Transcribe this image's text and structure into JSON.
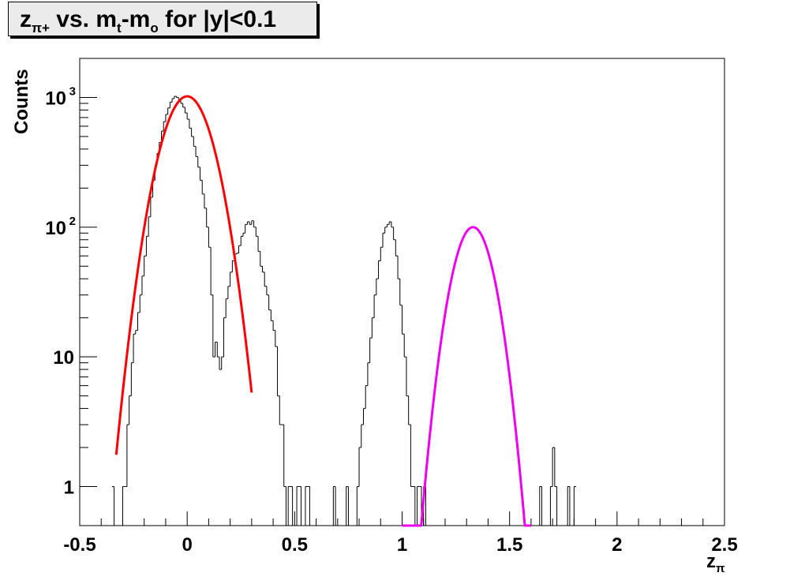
{
  "chart_data": {
    "type": "line",
    "title_parts": {
      "z": "z",
      "z_sub": "π+",
      "mid": " vs. m",
      "t_sub": "t",
      "dash": "-m",
      "o_sub": "o",
      "tail": " for |y|<0.1"
    },
    "xlabel_main": "z",
    "xlabel_sub": "π",
    "ylabel": "Counts",
    "xlim": [
      -0.5,
      2.5
    ],
    "ylim": [
      0.5,
      2000
    ],
    "yscale": "log",
    "x_ticks": [
      "-0.5",
      "0",
      "0.5",
      "1",
      "1.5",
      "2",
      "2.5"
    ],
    "y_ticks": [
      {
        "value": 1,
        "base": "1",
        "exp": ""
      },
      {
        "value": 10,
        "base": "10",
        "exp": ""
      },
      {
        "value": 100,
        "base": "10",
        "exp": "2"
      },
      {
        "value": 1000,
        "base": "10",
        "exp": "3"
      }
    ],
    "histogram": {
      "bin_width": 0.01,
      "x_start": -0.35,
      "counts": [
        1,
        0,
        0,
        0,
        0,
        1,
        1,
        3,
        5,
        9,
        15,
        16,
        22,
        30,
        42,
        60,
        85,
        120,
        170,
        230,
        300,
        370,
        450,
        550,
        650,
        740,
        830,
        920,
        980,
        1020,
        1000,
        970,
        900,
        840,
        760,
        680,
        580,
        500,
        420,
        350,
        290,
        230,
        180,
        140,
        100,
        70,
        30,
        10,
        13,
        10,
        8,
        10,
        20,
        28,
        35,
        45,
        55,
        62,
        63,
        72,
        85,
        90,
        105,
        110,
        105,
        112,
        100,
        85,
        65,
        50,
        45,
        35,
        30,
        23,
        19,
        16,
        12,
        5,
        3,
        3,
        1,
        0,
        1,
        1,
        0,
        0,
        1,
        1,
        0,
        0,
        1,
        1,
        0,
        0,
        0,
        0,
        0,
        0,
        0,
        0,
        0,
        0,
        0,
        1,
        0,
        0,
        0,
        0,
        0,
        1,
        0,
        0,
        0,
        0,
        1,
        2,
        3,
        4,
        6,
        9,
        14,
        20,
        30,
        40,
        55,
        70,
        90,
        100,
        105,
        110,
        100,
        80,
        60,
        40,
        25,
        15,
        10,
        5,
        3,
        1,
        1,
        0,
        1,
        1,
        0,
        1,
        0,
        0,
        0,
        0,
        0,
        0,
        0,
        0,
        0,
        0,
        0,
        0,
        0,
        0,
        0,
        0,
        0,
        0,
        0,
        0,
        0,
        0,
        0,
        0,
        0,
        0,
        0,
        0,
        0,
        0,
        0,
        0,
        0,
        0,
        0,
        0,
        0,
        0,
        0,
        0,
        0,
        0,
        0,
        0,
        0,
        0,
        0,
        0,
        0,
        0,
        0,
        0,
        0,
        1,
        0,
        0,
        0,
        0,
        1,
        2,
        1,
        0,
        0,
        0,
        0,
        0,
        1,
        0,
        0,
        1
      ]
    },
    "fits": [
      {
        "color": "#ff0000",
        "amplitude": 1020,
        "mean": 0.0,
        "sigma": 0.0925,
        "x_range": [
          -0.33,
          0.3
        ]
      },
      {
        "color": "#ee00ee",
        "amplitude": 100,
        "mean": 1.33,
        "sigma": 0.074,
        "x_range": [
          1.0,
          1.6
        ]
      }
    ]
  }
}
